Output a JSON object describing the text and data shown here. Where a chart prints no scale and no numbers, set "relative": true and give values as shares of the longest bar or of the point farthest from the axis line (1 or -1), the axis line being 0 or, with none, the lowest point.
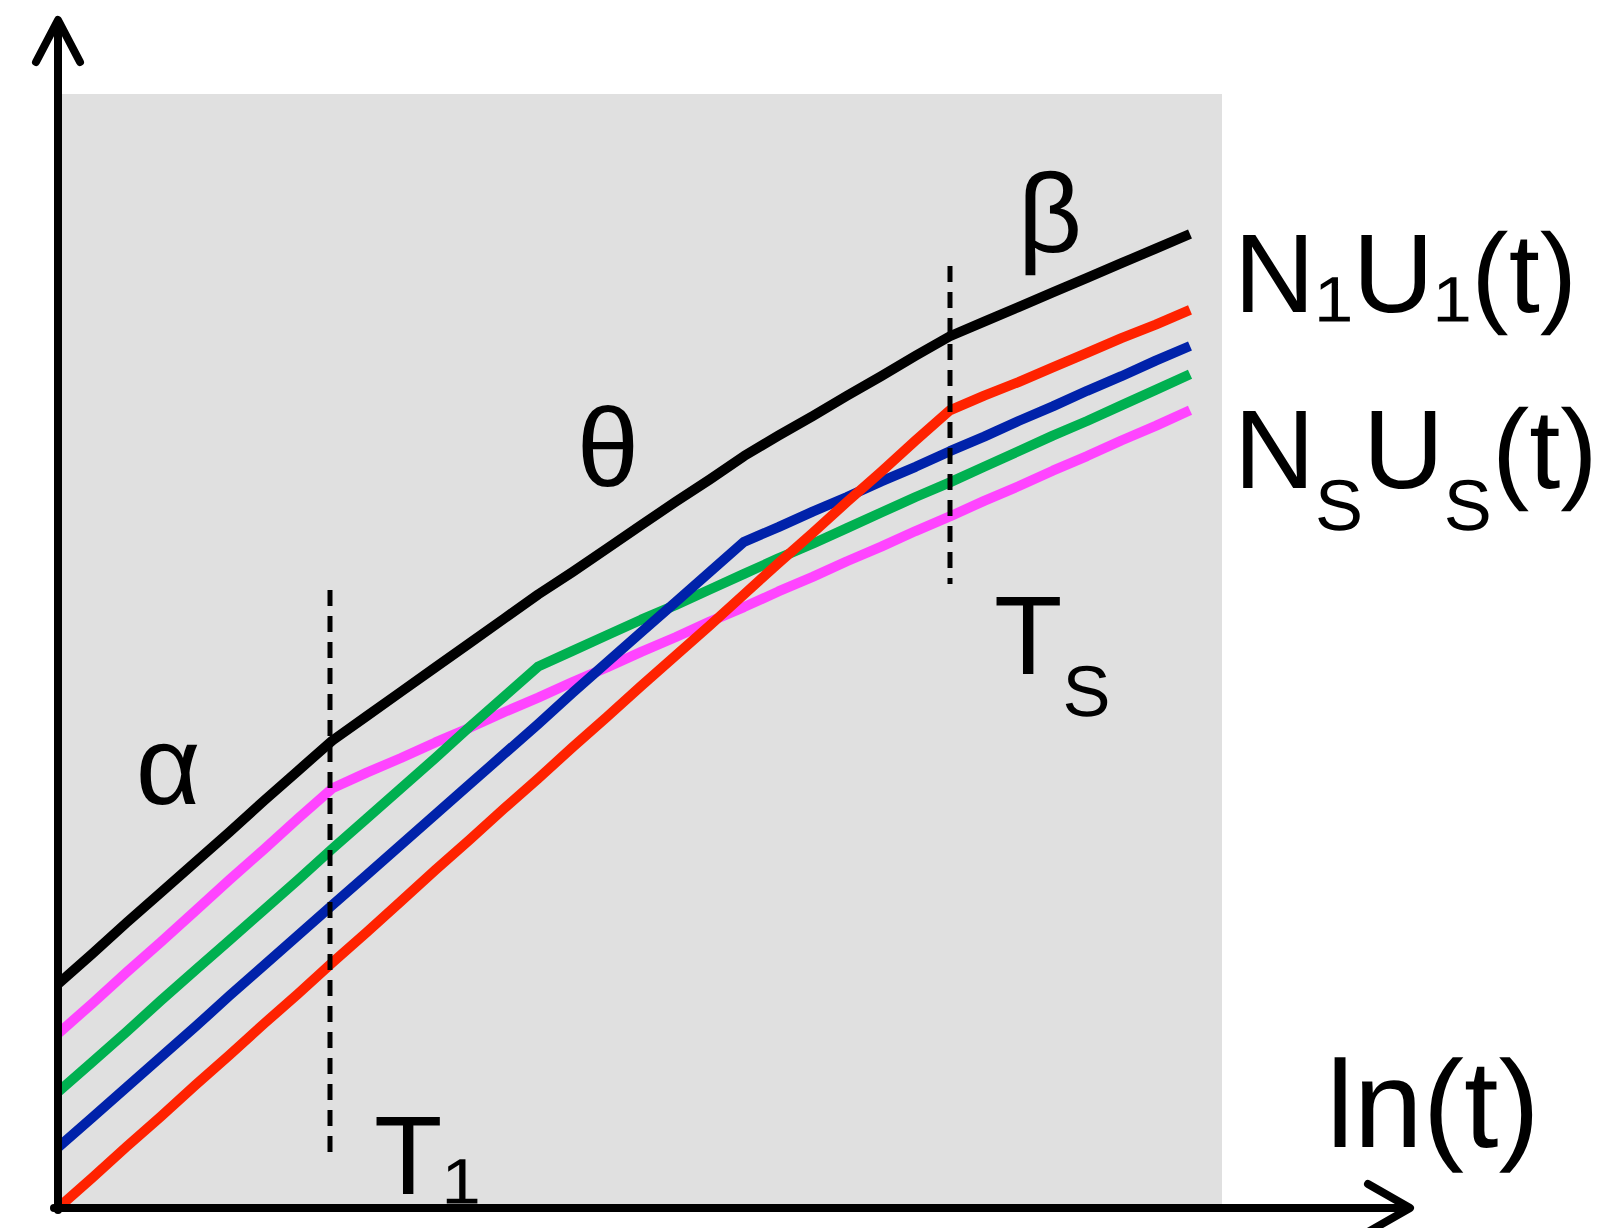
{
  "chart_data": {
    "type": "line",
    "relative": true,
    "xlabel": "ln(t)",
    "categories": [
      null,
      null,
      null,
      null,
      null,
      null,
      null,
      null,
      null,
      null,
      null,
      null,
      null,
      null,
      null,
      null,
      null,
      null,
      null,
      null,
      null,
      null,
      null,
      null,
      null,
      null,
      null,
      null,
      null,
      null,
      null,
      null,
      null,
      null
    ],
    "series": [
      {
        "name": "N$_{S}$U$_{S}$(t)",
        "color": "#ff44ff",
        "values": [
          0.179,
          0.21,
          0.242,
          0.273,
          0.305,
          0.337,
          0.368,
          0.4,
          0.431,
          0.447,
          0.462,
          0.478,
          0.493,
          0.509,
          0.524,
          0.54,
          0.555,
          0.571,
          0.586,
          0.602,
          0.617,
          0.633,
          0.648,
          0.664,
          0.679,
          0.695,
          0.71,
          0.726,
          0.741,
          0.757,
          0.772,
          0.788,
          0.803,
          0.819
        ]
      },
      {
        "color": "#00b050",
        "values": [
          0.119,
          0.15,
          0.181,
          0.213,
          0.244,
          0.275,
          0.306,
          0.337,
          0.369,
          0.4,
          0.431,
          0.462,
          0.494,
          0.525,
          0.556,
          0.572,
          0.588,
          0.604,
          0.619,
          0.635,
          0.651,
          0.667,
          0.682,
          0.698,
          0.714,
          0.73,
          0.745,
          0.761,
          0.777,
          0.793,
          0.808,
          0.824,
          0.84,
          0.856
        ]
      },
      {
        "color": "#0022aa",
        "values": [
          0.062,
          0.093,
          0.124,
          0.155,
          0.186,
          0.218,
          0.249,
          0.28,
          0.311,
          0.342,
          0.373,
          0.404,
          0.435,
          0.466,
          0.497,
          0.529,
          0.56,
          0.591,
          0.622,
          0.653,
          0.684,
          0.699,
          0.715,
          0.73,
          0.746,
          0.761,
          0.777,
          0.792,
          0.808,
          0.823,
          0.839,
          0.854,
          0.87,
          0.885
        ]
      },
      {
        "color": "#ff2200",
        "values": [
          0,
          0.031,
          0.063,
          0.094,
          0.126,
          0.157,
          0.189,
          0.22,
          0.252,
          0.283,
          0.315,
          0.347,
          0.378,
          0.41,
          0.441,
          0.473,
          0.504,
          0.536,
          0.567,
          0.598,
          0.63,
          0.662,
          0.693,
          0.725,
          0.756,
          0.788,
          0.819,
          0.834,
          0.848,
          0.863,
          0.878,
          0.893,
          0.907,
          0.922
        ]
      },
      {
        "name": "N₁U₁(t)",
        "color": "#000000",
        "values": [
          0.23,
          0.261,
          0.293,
          0.324,
          0.355,
          0.386,
          0.418,
          0.449,
          0.48,
          0.505,
          0.53,
          0.555,
          0.58,
          0.605,
          0.63,
          0.653,
          0.677,
          0.701,
          0.725,
          0.748,
          0.772,
          0.793,
          0.813,
          0.834,
          0.854,
          0.875,
          0.895,
          0.91,
          0.925,
          0.94,
          0.955,
          0.97,
          0.985,
          1.0
        ]
      }
    ],
    "annotations": [
      "α",
      "θ",
      "β",
      "T₁",
      "T$_{S}$"
    ]
  }
}
